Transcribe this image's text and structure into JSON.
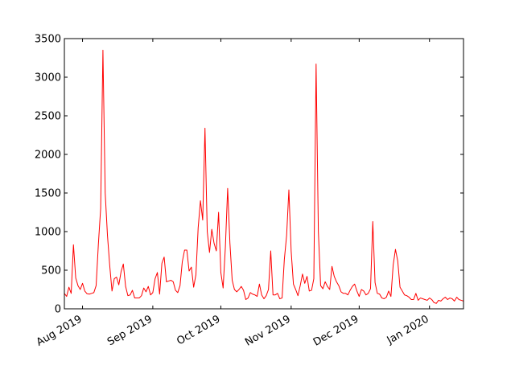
{
  "chart_data": {
    "type": "line",
    "title": "",
    "xlabel": "",
    "ylabel": "",
    "ylim": [
      0,
      3500
    ],
    "xlim": [
      "2019-07-24",
      "2020-01-16"
    ],
    "grid": false,
    "legend": "none",
    "line_color": "#ff0000",
    "yticks": [
      0,
      500,
      1000,
      1500,
      2000,
      2500,
      3000,
      3500
    ],
    "xticks": [
      {
        "label": "Aug 2019",
        "date": "2019-08-01"
      },
      {
        "label": "Sep 2019",
        "date": "2019-09-01"
      },
      {
        "label": "Oct 2019",
        "date": "2019-10-01"
      },
      {
        "label": "Nov 2019",
        "date": "2019-11-01"
      },
      {
        "label": "Dec 2019",
        "date": "2019-12-01"
      },
      {
        "label": "Jan 2020",
        "date": "2020-01-01"
      }
    ],
    "series": [
      {
        "points": [
          [
            "2019-07-24",
            200
          ],
          [
            "2019-07-25",
            160
          ],
          [
            "2019-07-26",
            280
          ],
          [
            "2019-07-27",
            200
          ],
          [
            "2019-07-28",
            830
          ],
          [
            "2019-07-29",
            400
          ],
          [
            "2019-07-30",
            300
          ],
          [
            "2019-07-31",
            250
          ],
          [
            "2019-08-01",
            330
          ],
          [
            "2019-08-02",
            230
          ],
          [
            "2019-08-03",
            195
          ],
          [
            "2019-08-04",
            190
          ],
          [
            "2019-08-05",
            200
          ],
          [
            "2019-08-06",
            210
          ],
          [
            "2019-08-07",
            300
          ],
          [
            "2019-08-08",
            840
          ],
          [
            "2019-08-09",
            1300
          ],
          [
            "2019-08-10",
            3350
          ],
          [
            "2019-08-11",
            1500
          ],
          [
            "2019-08-12",
            950
          ],
          [
            "2019-08-13",
            560
          ],
          [
            "2019-08-14",
            230
          ],
          [
            "2019-08-15",
            390
          ],
          [
            "2019-08-16",
            410
          ],
          [
            "2019-08-17",
            310
          ],
          [
            "2019-08-18",
            480
          ],
          [
            "2019-08-19",
            580
          ],
          [
            "2019-08-20",
            290
          ],
          [
            "2019-08-21",
            170
          ],
          [
            "2019-08-22",
            180
          ],
          [
            "2019-08-23",
            240
          ],
          [
            "2019-08-24",
            140
          ],
          [
            "2019-08-25",
            140
          ],
          [
            "2019-08-26",
            140
          ],
          [
            "2019-08-27",
            170
          ],
          [
            "2019-08-28",
            270
          ],
          [
            "2019-08-29",
            220
          ],
          [
            "2019-08-30",
            290
          ],
          [
            "2019-08-31",
            180
          ],
          [
            "2019-09-01",
            210
          ],
          [
            "2019-09-02",
            390
          ],
          [
            "2019-09-03",
            470
          ],
          [
            "2019-09-04",
            190
          ],
          [
            "2019-09-05",
            590
          ],
          [
            "2019-09-06",
            670
          ],
          [
            "2019-09-07",
            350
          ],
          [
            "2019-09-08",
            360
          ],
          [
            "2019-09-09",
            370
          ],
          [
            "2019-09-10",
            350
          ],
          [
            "2019-09-11",
            240
          ],
          [
            "2019-09-12",
            210
          ],
          [
            "2019-09-13",
            300
          ],
          [
            "2019-09-14",
            610
          ],
          [
            "2019-09-15",
            760
          ],
          [
            "2019-09-16",
            760
          ],
          [
            "2019-09-17",
            490
          ],
          [
            "2019-09-18",
            540
          ],
          [
            "2019-09-19",
            280
          ],
          [
            "2019-09-20",
            440
          ],
          [
            "2019-09-21",
            1050
          ],
          [
            "2019-09-22",
            1400
          ],
          [
            "2019-09-23",
            1150
          ],
          [
            "2019-09-24",
            2340
          ],
          [
            "2019-09-25",
            1000
          ],
          [
            "2019-09-26",
            730
          ],
          [
            "2019-09-27",
            1030
          ],
          [
            "2019-09-28",
            850
          ],
          [
            "2019-09-29",
            750
          ],
          [
            "2019-09-30",
            1250
          ],
          [
            "2019-10-01",
            470
          ],
          [
            "2019-10-02",
            270
          ],
          [
            "2019-10-03",
            800
          ],
          [
            "2019-10-04",
            1560
          ],
          [
            "2019-10-05",
            850
          ],
          [
            "2019-10-06",
            370
          ],
          [
            "2019-10-07",
            250
          ],
          [
            "2019-10-08",
            220
          ],
          [
            "2019-10-09",
            250
          ],
          [
            "2019-10-10",
            290
          ],
          [
            "2019-10-11",
            240
          ],
          [
            "2019-10-12",
            120
          ],
          [
            "2019-10-13",
            140
          ],
          [
            "2019-10-14",
            210
          ],
          [
            "2019-10-15",
            190
          ],
          [
            "2019-10-16",
            180
          ],
          [
            "2019-10-17",
            160
          ],
          [
            "2019-10-18",
            320
          ],
          [
            "2019-10-19",
            180
          ],
          [
            "2019-10-20",
            130
          ],
          [
            "2019-10-21",
            170
          ],
          [
            "2019-10-22",
            250
          ],
          [
            "2019-10-23",
            750
          ],
          [
            "2019-10-24",
            180
          ],
          [
            "2019-10-25",
            180
          ],
          [
            "2019-10-26",
            200
          ],
          [
            "2019-10-27",
            130
          ],
          [
            "2019-10-28",
            140
          ],
          [
            "2019-10-29",
            640
          ],
          [
            "2019-10-30",
            950
          ],
          [
            "2019-10-31",
            1540
          ],
          [
            "2019-11-01",
            750
          ],
          [
            "2019-11-02",
            320
          ],
          [
            "2019-11-03",
            250
          ],
          [
            "2019-11-04",
            170
          ],
          [
            "2019-11-05",
            300
          ],
          [
            "2019-11-06",
            450
          ],
          [
            "2019-11-07",
            330
          ],
          [
            "2019-11-08",
            420
          ],
          [
            "2019-11-09",
            230
          ],
          [
            "2019-11-10",
            240
          ],
          [
            "2019-11-11",
            390
          ],
          [
            "2019-11-12",
            3170
          ],
          [
            "2019-11-13",
            1000
          ],
          [
            "2019-11-14",
            300
          ],
          [
            "2019-11-15",
            260
          ],
          [
            "2019-11-16",
            350
          ],
          [
            "2019-11-17",
            290
          ],
          [
            "2019-11-18",
            250
          ],
          [
            "2019-11-19",
            550
          ],
          [
            "2019-11-20",
            420
          ],
          [
            "2019-11-21",
            350
          ],
          [
            "2019-11-22",
            300
          ],
          [
            "2019-11-23",
            220
          ],
          [
            "2019-11-24",
            200
          ],
          [
            "2019-11-25",
            200
          ],
          [
            "2019-11-26",
            180
          ],
          [
            "2019-11-27",
            240
          ],
          [
            "2019-11-28",
            290
          ],
          [
            "2019-11-29",
            320
          ],
          [
            "2019-11-30",
            230
          ],
          [
            "2019-12-01",
            160
          ],
          [
            "2019-12-02",
            250
          ],
          [
            "2019-12-03",
            230
          ],
          [
            "2019-12-04",
            180
          ],
          [
            "2019-12-05",
            200
          ],
          [
            "2019-12-06",
            260
          ],
          [
            "2019-12-07",
            1130
          ],
          [
            "2019-12-08",
            340
          ],
          [
            "2019-12-09",
            200
          ],
          [
            "2019-12-10",
            190
          ],
          [
            "2019-12-11",
            140
          ],
          [
            "2019-12-12",
            130
          ],
          [
            "2019-12-13",
            150
          ],
          [
            "2019-12-14",
            230
          ],
          [
            "2019-12-15",
            160
          ],
          [
            "2019-12-16",
            570
          ],
          [
            "2019-12-17",
            770
          ],
          [
            "2019-12-18",
            620
          ],
          [
            "2019-12-19",
            280
          ],
          [
            "2019-12-20",
            230
          ],
          [
            "2019-12-21",
            180
          ],
          [
            "2019-12-22",
            170
          ],
          [
            "2019-12-23",
            150
          ],
          [
            "2019-12-24",
            120
          ],
          [
            "2019-12-25",
            120
          ],
          [
            "2019-12-26",
            200
          ],
          [
            "2019-12-27",
            110
          ],
          [
            "2019-12-28",
            140
          ],
          [
            "2019-12-29",
            130
          ],
          [
            "2019-12-30",
            120
          ],
          [
            "2019-12-31",
            110
          ],
          [
            "2020-01-01",
            140
          ],
          [
            "2020-01-02",
            120
          ],
          [
            "2020-01-03",
            80
          ],
          [
            "2020-01-04",
            70
          ],
          [
            "2020-01-05",
            110
          ],
          [
            "2020-01-06",
            100
          ],
          [
            "2020-01-07",
            130
          ],
          [
            "2020-01-08",
            150
          ],
          [
            "2020-01-09",
            120
          ],
          [
            "2020-01-10",
            140
          ],
          [
            "2020-01-11",
            130
          ],
          [
            "2020-01-12",
            100
          ],
          [
            "2020-01-13",
            150
          ],
          [
            "2020-01-14",
            120
          ],
          [
            "2020-01-15",
            110
          ],
          [
            "2020-01-16",
            100
          ]
        ]
      }
    ]
  }
}
